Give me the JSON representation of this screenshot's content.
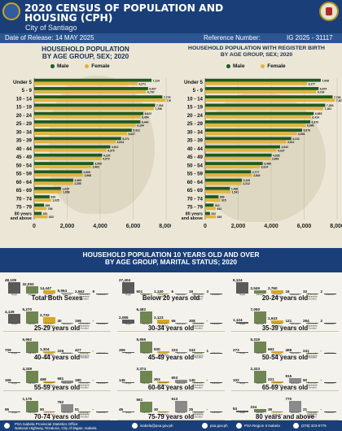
{
  "header": {
    "title_line1": "2020 CENSUS OF POPULATION AND",
    "title_line2": "HOUSING (CPH)",
    "city": "City of Santiago",
    "release": "Date of Release: 14 MAY 2025",
    "reference_label": "Reference Number:",
    "reference_value": "IG 2025 - 31117"
  },
  "colors": {
    "male": "#1f5a1f",
    "female": "#e0b43c",
    "navy": "#1a3f78",
    "gray_bar": "#5a5a5a",
    "olive": "#6f8552",
    "gold": "#d9a622"
  },
  "legend": {
    "male": "Male",
    "female": "Female"
  },
  "chart_data": [
    {
      "type": "bar",
      "orientation": "horizontal",
      "title": "HOUSEHOLD POPULATION BY AGE GROUP, SEX; 2020",
      "title_lines": [
        "HOUSEHOLD POPULATION",
        "BY AGE GROUP, SEX; 2020"
      ],
      "categories": [
        "Under 5",
        "5 - 9",
        "10 - 14",
        "15 - 19",
        "20 - 24",
        "25 - 29",
        "30 - 34",
        "35 - 39",
        "40 - 44",
        "45 - 49",
        "50 - 54",
        "55 - 59",
        "60 - 64",
        "65 - 69",
        "70 - 74",
        "75 - 79",
        "80 years and above"
      ],
      "series": [
        {
          "name": "Male",
          "values": [
            7114,
            6907,
            7775,
            7334,
            6622,
            6440,
            5922,
            5271,
            4612,
            4120,
            3599,
            2905,
            2369,
            1625,
            934,
            599,
            451
          ]
        },
        {
          "name": "Female",
          "values": [
            6271,
            6797,
            7954,
            7256,
            6454,
            6164,
            5627,
            4944,
            4375,
            4079,
            3462,
            2968,
            2355,
            1658,
            1025,
            756,
            823
          ]
        }
      ],
      "xlim": [
        0,
        8000
      ],
      "xticks": [
        "0",
        "2,000",
        "4,000",
        "6,000",
        "8,000"
      ],
      "legend_position": "top"
    },
    {
      "type": "bar",
      "orientation": "horizontal",
      "title": "HOUSEHOLD POPULATION WITH REGISTER BIRTH BY AGE GROUP, SEX; 2020",
      "title_lines": [
        "HOUSEHOLD POPULATION WITH REGISTER BIRTH",
        "BY AGE GROUP, SEX; 2020"
      ],
      "categories": [
        "Under 5",
        "5 - 9",
        "10 - 14",
        "15 - 19",
        "20 - 24",
        "25 - 29",
        "30 - 34",
        "35 - 39",
        "40 - 44",
        "45 - 49",
        "50 - 54",
        "55 - 59",
        "60 - 64",
        "65 - 69",
        "70 - 74",
        "75 - 79",
        "80 years and above"
      ],
      "series": [
        {
          "name": "Male",
          "values": [
            7008,
            6879,
            7726,
            7283,
            6585,
            6370,
            5876,
            5222,
            4542,
            4028,
            3488,
            2777,
            2229,
            1498,
            806,
            510,
            292
          ]
        },
        {
          "name": "Female",
          "values": [
            6177,
            6734,
            7873,
            7161,
            6414,
            6096,
            5561,
            4912,
            4327,
            3968,
            3314,
            2844,
            2212,
            1541,
            915,
            642,
            649
          ]
        }
      ],
      "xlim": [
        0,
        8000
      ],
      "xticks": [
        "0",
        "2,000",
        "4,000",
        "6,000",
        "8,000"
      ],
      "legend_position": "top"
    },
    {
      "type": "bar",
      "title": "HOUSEHOLD POPULATION 10 YEARS OLD AND OVER BY AGE GROUP, MARITAL STATUS; 2020",
      "categories": [
        "Single",
        "Married",
        "Common-Law/Live-in",
        "Widowed",
        "Divorced/Separated/Annulled",
        "Unknown"
      ],
      "panels": [
        {
          "title": "Total Both Sexes",
          "values": [
            48109,
            32053,
            14447,
            5954,
            2563,
            9
          ]
        },
        {
          "title": "Below 20 years old",
          "values": [
            27404,
            501,
            1130,
            6,
            19,
            3
          ]
        },
        {
          "title": "20-24 years old",
          "values": [
            8124,
            2549,
            2760,
            16,
            33,
            2
          ]
        },
        {
          "title": "25-29 years old",
          "values": [
            4139,
            5270,
            2732,
            40,
            199,
            0
          ]
        },
        {
          "title": "30-34 years old",
          "values": [
            2085,
            6482,
            2123,
            66,
            308,
            0
          ]
        },
        {
          "title": "35-39 years old",
          "values": [
            1124,
            7050,
            1643,
            121,
            284,
            2
          ]
        },
        {
          "title": "40-44 years old",
          "values": [
            709,
            6992,
            1304,
            226,
            427,
            0
          ]
        },
        {
          "title": "45-49 years old",
          "values": [
            399,
            5955,
            930,
            333,
            343,
            1
          ]
        },
        {
          "title": "50-54 years old",
          "values": [
            273,
            5319,
            692,
            498,
            241,
            0
          ]
        },
        {
          "title": "55-59 years old",
          "values": [
            166,
            4339,
            498,
            681,
            180,
            0
          ]
        },
        {
          "title": "60-64 years old",
          "values": [
            145,
            3374,
            353,
            903,
            140,
            0
          ]
        },
        {
          "title": "65-69 years old",
          "values": [
            102,
            2323,
            221,
            915,
            90,
            0
          ]
        },
        {
          "title": "70-74 years old",
          "values": [
            95,
            1176,
            90,
            782,
            51,
            0
          ]
        },
        {
          "title": "75-79 years old",
          "values": [
            45,
            561,
            30,
            613,
            25,
            0
          ]
        },
        {
          "title": "80 years and above",
          "values": [
            84,
            234,
            39,
            770,
            21,
            0
          ]
        }
      ]
    }
  ],
  "marital_title_line1": "HOUSEHOLD POPULATION 10 YEARS OLD AND OVER",
  "marital_title_line2": "BY AGE GROUP, MARITAL STATUS; 2020",
  "footer": {
    "org_line1": "PSA Isabela Provincial Statistics Office",
    "org_line2": "National Highway, Rizaluna, City of Ilagan, Isabela",
    "email": "isabela@psa.gov.ph",
    "web": "psa.gov.ph",
    "facebook": "PSA Region II Isabela",
    "phone": "(078) 323-0775"
  }
}
